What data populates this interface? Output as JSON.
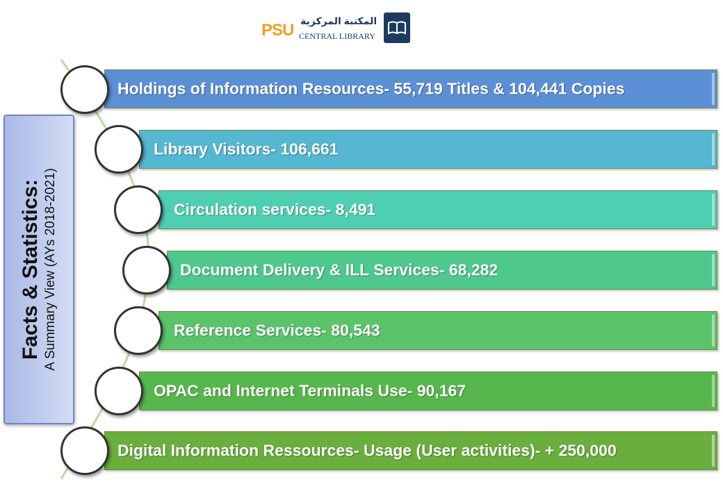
{
  "logo": {
    "abbrev": "PSU",
    "arabic": "المكتبة المركزية",
    "english": "CENTRAL LIBRARY"
  },
  "side_box": {
    "title": "Facts & Statistics:",
    "subtitle": "A Summary View (AYs 2018-2021)"
  },
  "colors": {
    "bar1": "#5b8fd6",
    "bar2": "#55b7d1",
    "bar3": "#4ecfb2",
    "bar4": "#4fc88e",
    "bar5": "#5bc46a",
    "bar6": "#57b74c",
    "bar7": "#6aae3e"
  },
  "items": [
    {
      "label": "Holdings of Information Resources- 55,719 Titles & 104,441 Copies"
    },
    {
      "label": "Library Visitors- 106,661"
    },
    {
      "label": "Circulation services- 8,491"
    },
    {
      "label": "Document Delivery & ILL Services- 68,282"
    },
    {
      "label": "Reference Services- 80,543"
    },
    {
      "label": "OPAC and Internet Terminals Use- 90,167"
    },
    {
      "label": "Digital Information Ressources- Usage (User activities)- + 250,000"
    }
  ]
}
